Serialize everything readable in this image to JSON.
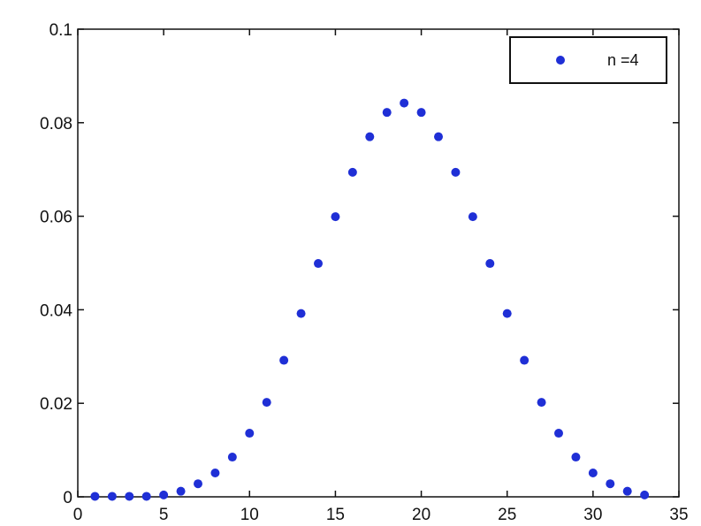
{
  "chart_data": {
    "type": "scatter",
    "title": "",
    "xlabel": "",
    "ylabel": "",
    "xlim": [
      0,
      35
    ],
    "ylim": [
      0,
      0.1
    ],
    "xticks": [
      0,
      5,
      10,
      15,
      20,
      25,
      30,
      35
    ],
    "yticks": [
      0,
      0.02,
      0.04,
      0.06,
      0.08,
      0.1
    ],
    "xtick_labels": [
      "0",
      "5",
      "10",
      "15",
      "20",
      "25",
      "30",
      "35"
    ],
    "ytick_labels": [
      "0",
      "0.02",
      "0.04",
      "0.06",
      "0.08",
      "0.1"
    ],
    "grid": false,
    "legend_position": "top-right",
    "series": [
      {
        "name": "n =4",
        "color": "#1f2fd6",
        "marker": "dot",
        "x": [
          1,
          2,
          3,
          4,
          5,
          6,
          7,
          8,
          9,
          10,
          11,
          12,
          13,
          14,
          15,
          16,
          17,
          18,
          19,
          20,
          21,
          22,
          23,
          24,
          25,
          26,
          27,
          28,
          29,
          30,
          31,
          32,
          33
        ],
        "y": [
          0.0001,
          0.0001,
          0.0001,
          0.0001,
          0.0004,
          0.0012,
          0.0028,
          0.0051,
          0.0085,
          0.0136,
          0.0202,
          0.0292,
          0.0392,
          0.0499,
          0.0599,
          0.0694,
          0.077,
          0.0822,
          0.0842,
          0.0822,
          0.077,
          0.0694,
          0.0599,
          0.0499,
          0.0392,
          0.0292,
          0.0202,
          0.0136,
          0.0085,
          0.0051,
          0.0028,
          0.0012,
          0.0004
        ]
      }
    ]
  }
}
